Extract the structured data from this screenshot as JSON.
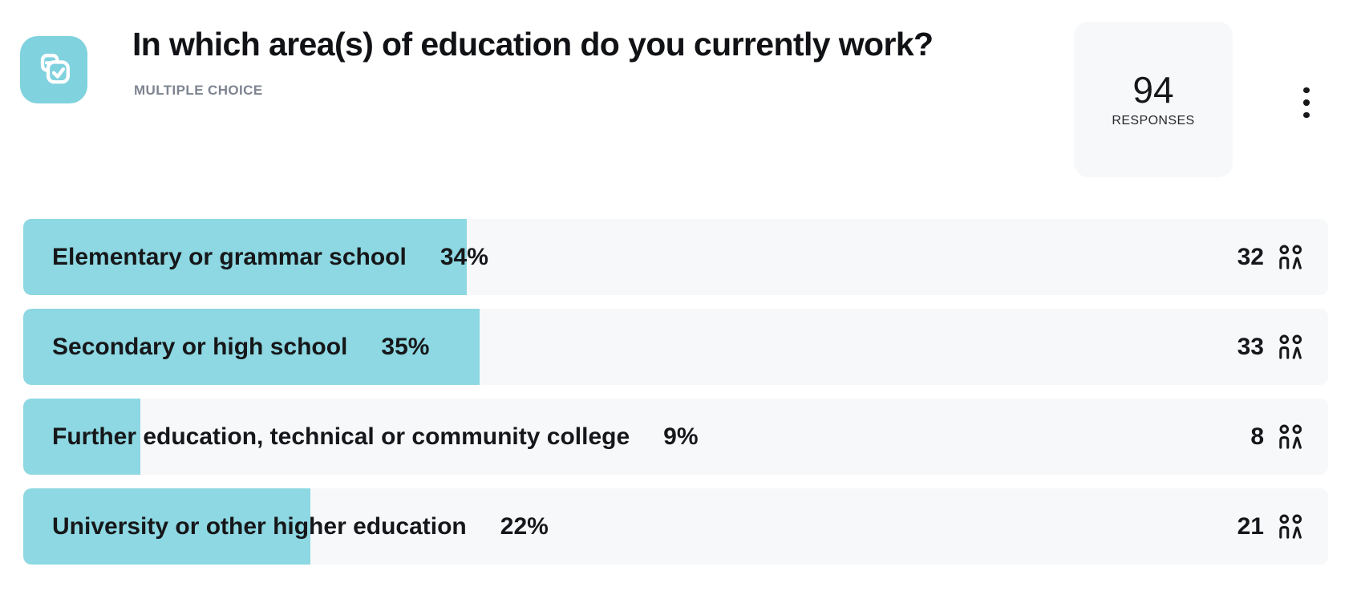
{
  "header": {
    "title": "In which area(s) of education do you currently work?",
    "question_type_label": "MULTIPLE CHOICE",
    "icon_name": "multiple-choice-icon",
    "responses": {
      "count": "94",
      "label": "RESPONSES"
    },
    "menu_icon_name": "kebab-menu-icon"
  },
  "rows": [
    {
      "label": "Elementary or grammar school",
      "percent_label": "34%",
      "percent_value": 34,
      "count": "32"
    },
    {
      "label": "Secondary or high school",
      "percent_label": "35%",
      "percent_value": 35,
      "count": "33"
    },
    {
      "label": "Further education, technical or community college",
      "percent_label": "9%",
      "percent_value": 9,
      "count": "8"
    },
    {
      "label": "University or other higher education",
      "percent_label": "22%",
      "percent_value": 22,
      "count": "21"
    }
  ],
  "chart_data": {
    "type": "bar",
    "orientation": "horizontal",
    "title": "In which area(s) of education do you currently work?",
    "subtitle": "MULTIPLE CHOICE",
    "total_responses": 94,
    "categories": [
      "Elementary or grammar school",
      "Secondary or high school",
      "Further education, technical or community college",
      "University or other higher education"
    ],
    "series": [
      {
        "name": "percent",
        "values": [
          34,
          35,
          9,
          22
        ]
      },
      {
        "name": "responses",
        "values": [
          32,
          33,
          8,
          21
        ]
      }
    ],
    "xlim": [
      0,
      100
    ],
    "grid": false,
    "legend": false,
    "bar_color": "#8dd8e2"
  },
  "colors": {
    "bar_fill": "#8dd8e2",
    "row_background": "#f7f8fa",
    "icon_background": "#7fd2de",
    "responses_box_background": "#f7f8fa",
    "text_primary": "#16171a",
    "text_secondary": "#7e8490"
  }
}
